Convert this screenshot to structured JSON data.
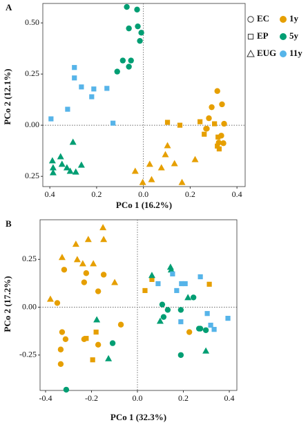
{
  "chart_data": [
    {
      "type": "scatter",
      "label": "A",
      "x_label": "PCo 1 (16.2%)",
      "y_label": "PCo 2 (12.1%)",
      "xlim": [
        -0.43,
        0.435
      ],
      "ylim": [
        -0.3,
        0.595
      ],
      "xticks": [
        {
          "value": -0.4,
          "label": "0.4"
        },
        {
          "value": -0.2,
          "label": "0.2"
        },
        {
          "value": 0,
          "label": "0.0"
        },
        0.2,
        0.4
      ],
      "yticks": [
        {
          "value": -0.25,
          "label": "0.25"
        },
        {
          "value": 0,
          "label": "0.00"
        },
        0.25,
        {
          "value": 0.5,
          "label": "0.50"
        }
      ],
      "shape_legend": [
        {
          "name": "EC",
          "shape": "circle"
        },
        {
          "name": "EP",
          "shape": "square"
        },
        {
          "name": "EUG",
          "shape": "triangle"
        }
      ],
      "color_legend": [
        {
          "name": "1y",
          "color": "#E69F00"
        },
        {
          "name": "5y",
          "color": "#009E73"
        },
        {
          "name": "11y",
          "color": "#56B4E9"
        }
      ],
      "series": [
        {
          "shape": "circle",
          "color": "#009E73",
          "x": [
            -0.071,
            -0.027,
            -0.062,
            -0.024,
            -0.009,
            -0.015,
            -0.088,
            -0.112,
            -0.053,
            -0.062
          ],
          "values": [
            0.578,
            0.565,
            0.473,
            0.483,
            0.452,
            0.412,
            0.316,
            0.262,
            0.316,
            0.286
          ]
        },
        {
          "shape": "square",
          "color": "#56B4E9",
          "x": [
            -0.295,
            -0.295,
            -0.265,
            -0.212,
            -0.156,
            -0.221,
            -0.324,
            -0.13,
            -0.395
          ],
          "values": [
            0.282,
            0.231,
            0.187,
            0.177,
            0.18,
            0.139,
            0.078,
            0.01,
            0.031
          ]
        },
        {
          "shape": "triangle",
          "color": "#009E73",
          "x": [
            -0.301,
            -0.354,
            -0.389,
            -0.348,
            -0.386,
            -0.327,
            -0.265,
            -0.313,
            -0.289,
            -0.386
          ],
          "values": [
            -0.082,
            -0.153,
            -0.173,
            -0.19,
            -0.207,
            -0.207,
            -0.194,
            -0.224,
            -0.228,
            -0.231
          ]
        },
        {
          "shape": "circle",
          "color": "#E69F00",
          "x": [
            0.316,
            0.336,
            0.292,
            0.28,
            0.268,
            0.271,
            0.345,
            0.333,
            0.342,
            0.322
          ],
          "values": [
            0.167,
            0.102,
            0.088,
            0.034,
            -0.017,
            -0.017,
            0.007,
            -0.051,
            -0.088,
            -0.085
          ]
        },
        {
          "shape": "square",
          "color": "#E69F00",
          "x": [
            0.103,
            0.156,
            0.242,
            0.304,
            0.319,
            0.316,
            0.324,
            0.26
          ],
          "values": [
            0.014,
            0,
            0.017,
            0.007,
            -0.058,
            -0.102,
            -0.116,
            -0.044
          ]
        },
        {
          "shape": "triangle",
          "color": "#E69F00",
          "x": [
            0.103,
            0.027,
            0.077,
            0.133,
            0.221,
            -0.035,
            -0.003,
            0.035,
            0.165,
            0.094
          ],
          "values": [
            -0.099,
            -0.19,
            -0.207,
            -0.187,
            -0.167,
            -0.224,
            -0.279,
            -0.265,
            -0.279,
            -0.143
          ]
        }
      ]
    },
    {
      "type": "scatter",
      "label": "B",
      "x_label": "PCo 1 (32.3%)",
      "y_label": "PCo 2 (17.2%)",
      "xlim": [
        -0.424,
        0.433
      ],
      "ylim": [
        -0.435,
        0.457
      ],
      "xticks": [
        -0.4,
        -0.2,
        {
          "value": 0,
          "label": "0.0"
        },
        0.2,
        0.4
      ],
      "yticks": [
        -0.25,
        {
          "value": 0,
          "label": "0.00"
        },
        0.25
      ],
      "series": [
        {
          "shape": "triangle",
          "color": "#E69F00",
          "x": [
            -0.15,
            -0.214,
            -0.147,
            -0.268,
            -0.262,
            -0.328,
            -0.238,
            -0.192,
            -0.379,
            -0.099
          ],
          "values": [
            0.417,
            0.355,
            0.355,
            0.33,
            0.25,
            0.261,
            0.228,
            0.228,
            0.043,
            0.13
          ]
        },
        {
          "shape": "circle",
          "color": "#E69F00",
          "x": [
            -0.319,
            -0.223,
            -0.147,
            -0.232,
            -0.171,
            -0.349,
            -0.328,
            -0.313,
            -0.334,
            -0.072,
            -0.232,
            -0.334,
            -0.171,
            0.226
          ],
          "values": [
            0.196,
            0.178,
            0.17,
            0.13,
            0.083,
            0.022,
            -0.13,
            -0.167,
            -0.221,
            -0.091,
            -0.167,
            -0.297,
            -0.196,
            -0.13
          ]
        },
        {
          "shape": "square",
          "color": "#E69F00",
          "x": [
            -0.223,
            -0.18,
            -0.195,
            0.033,
            0.063,
            0.313
          ],
          "values": [
            -0.163,
            -0.13,
            -0.275,
            0.087,
            0.145,
            0.12
          ]
        },
        {
          "shape": "circle",
          "color": "#009E73",
          "x": [
            0.108,
            0.114,
            0.132,
            0.244,
            0.189,
            0.268,
            0.274,
            -0.108,
            0.189,
            0.298,
            -0.31
          ],
          "values": [
            0.014,
            -0.051,
            -0.014,
            0.051,
            -0.014,
            -0.112,
            -0.112,
            -0.188,
            -0.25,
            -0.12,
            -0.431
          ]
        },
        {
          "shape": "triangle",
          "color": "#009E73",
          "x": [
            -0.177,
            0.099,
            0.147,
            0.063,
            0.144,
            0.22,
            0.298,
            -0.126
          ],
          "values": [
            -0.065,
            -0.072,
            0.196,
            0.167,
            0.21,
            0.051,
            -0.228,
            -0.268
          ]
        },
        {
          "shape": "square",
          "color": "#56B4E9",
          "x": [
            0.192,
            0.208,
            0.274,
            0.153,
            0.09,
            0.171,
            0.304,
            0.319,
            0.334,
            0.394,
            0.189
          ],
          "values": [
            0.123,
            0.123,
            0.159,
            0.174,
            0.123,
            0.087,
            -0.033,
            -0.094,
            -0.116,
            -0.058,
            -0.076
          ]
        }
      ]
    }
  ]
}
